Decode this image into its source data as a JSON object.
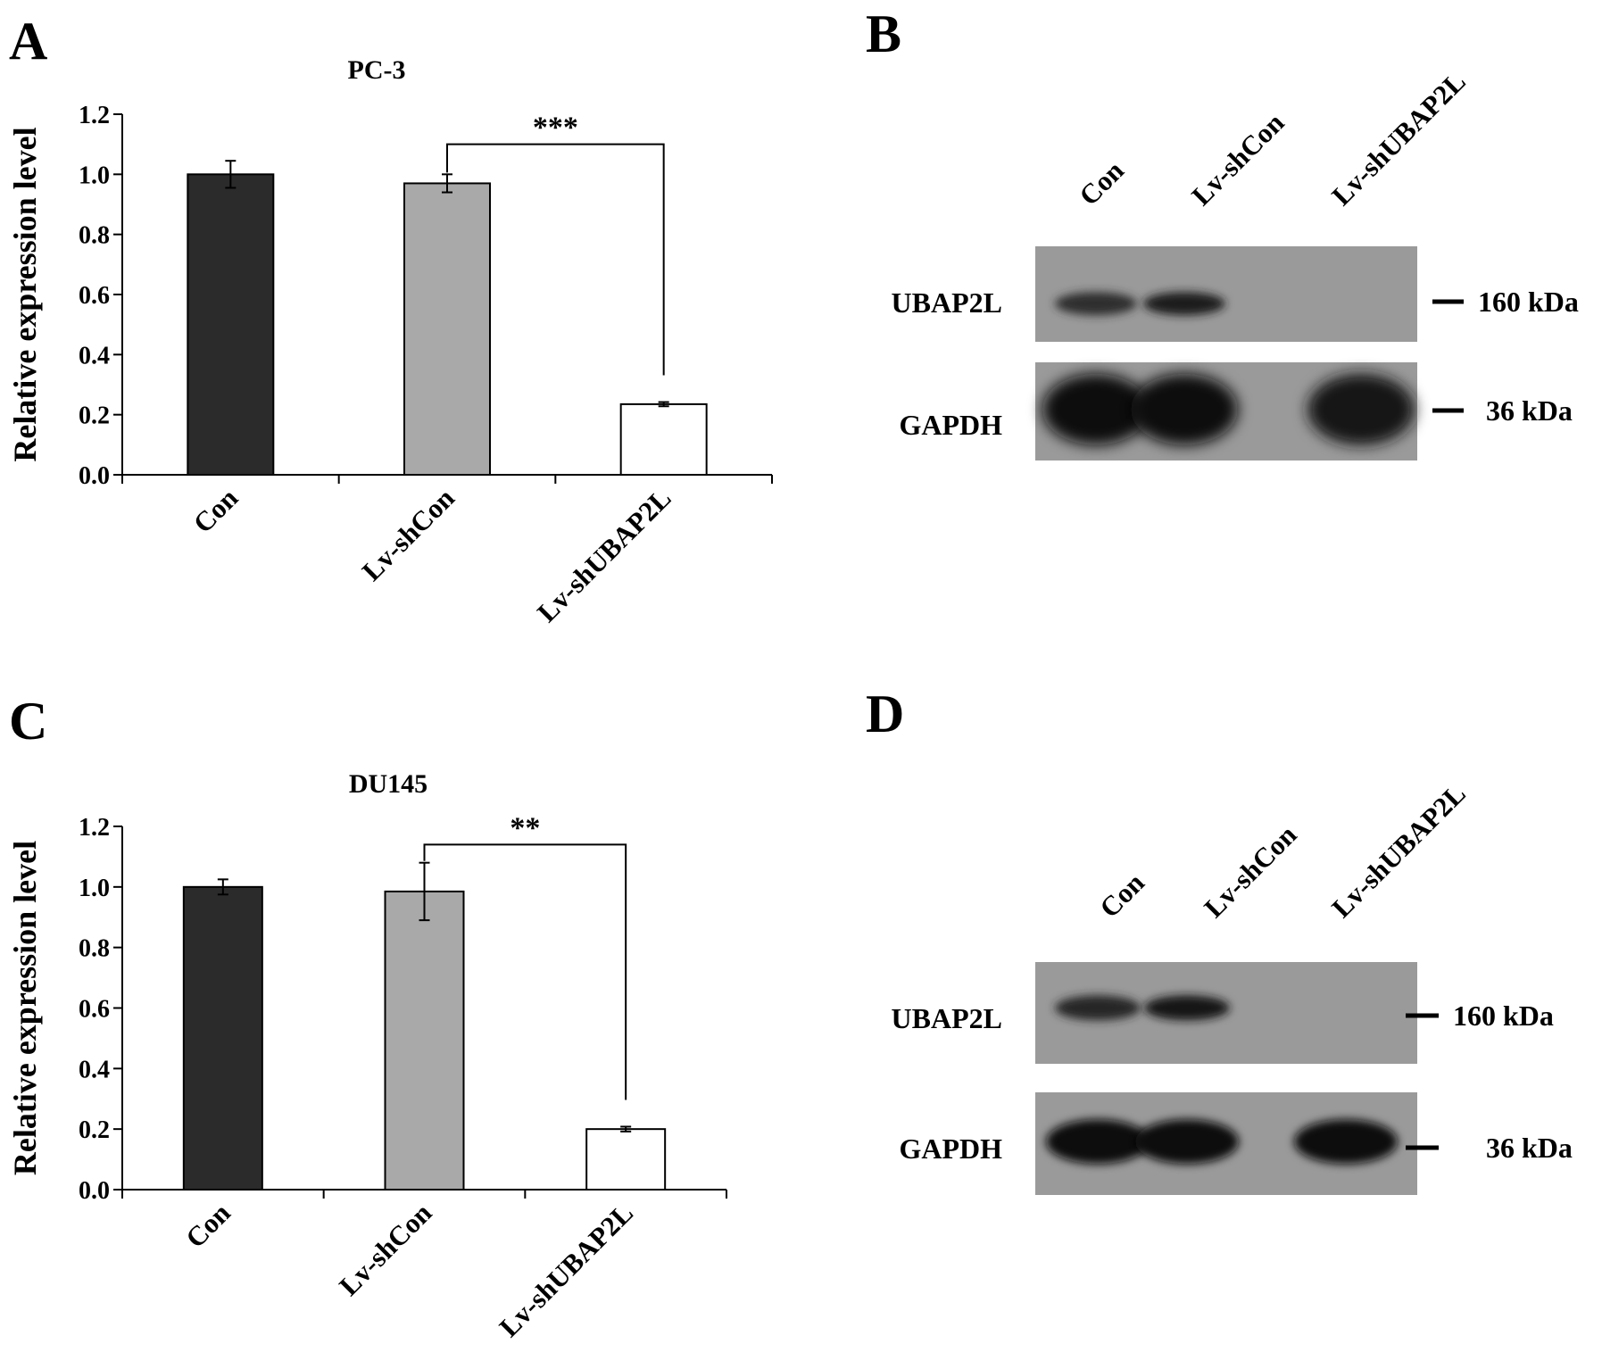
{
  "panels": {
    "a": "A",
    "b": "B",
    "c": "C",
    "d": "D"
  },
  "chart_data": [
    {
      "type": "bar",
      "title": "PC-3",
      "ylabel": "Relative expression level",
      "xlabel": "",
      "ylim": [
        0,
        1.2
      ],
      "yticks": [
        "0.0",
        "0.2",
        "0.4",
        "0.6",
        "0.8",
        "1.0",
        "1.2"
      ],
      "categories": [
        "Con",
        "Lv-shCon",
        "Lv-shUBAP2L"
      ],
      "values": [
        1.0,
        0.97,
        0.235
      ],
      "errors": [
        0.045,
        0.03,
        0.007
      ],
      "colors": [
        "#2b2b2b",
        "#a9a9a9",
        "#ffffff"
      ],
      "significance": {
        "from": 1,
        "to": 2,
        "label": "***"
      },
      "grid": false
    },
    {
      "type": "bar",
      "title": "DU145",
      "ylabel": "Relative expression level",
      "xlabel": "",
      "ylim": [
        0,
        1.2
      ],
      "yticks": [
        "0.0",
        "0.2",
        "0.4",
        "0.6",
        "0.8",
        "1.0",
        "1.2"
      ],
      "categories": [
        "Con",
        "Lv-shCon",
        "Lv-shUBAP2L"
      ],
      "values": [
        1.0,
        0.985,
        0.2
      ],
      "errors": [
        0.025,
        0.095,
        0.008
      ],
      "colors": [
        "#2b2b2b",
        "#a9a9a9",
        "#ffffff"
      ],
      "significance": {
        "from": 1,
        "to": 2,
        "label": "**"
      },
      "grid": false
    }
  ],
  "blots": [
    {
      "lanes": [
        "Con",
        "Lv-shCon",
        "Lv-shUBAP2L"
      ],
      "rows": [
        {
          "protein": "UBAP2L",
          "marker": "160 kDa",
          "intensity": [
            0.75,
            0.85,
            0.0
          ]
        },
        {
          "protein": "GAPDH",
          "marker": "36 kDa",
          "intensity": [
            1.0,
            1.0,
            0.9
          ]
        }
      ]
    },
    {
      "lanes": [
        "Con",
        "Lv-shCon",
        "Lv-shUBAP2L"
      ],
      "rows": [
        {
          "protein": "UBAP2L",
          "marker": "160 kDa",
          "intensity": [
            0.8,
            0.9,
            0.0
          ]
        },
        {
          "protein": "GAPDH",
          "marker": "36 kDa",
          "intensity": [
            1.0,
            1.0,
            0.95
          ]
        }
      ]
    }
  ]
}
